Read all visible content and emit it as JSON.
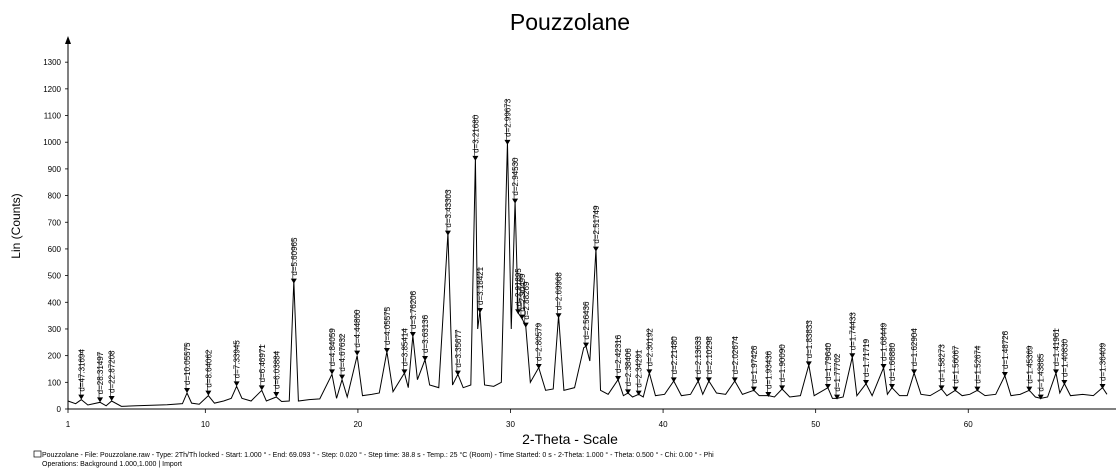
{
  "chart_data": {
    "type": "line",
    "title": "Pouzzolane",
    "x_label": "2-Theta - Scale",
    "y_label": "Lin (Counts)",
    "color": "#000000",
    "xlim": [
      1,
      69.093
    ],
    "ylim": [
      0,
      1400
    ],
    "xticks": [
      1,
      10,
      20,
      30,
      40,
      50,
      60
    ],
    "yticks": [
      0,
      100,
      200,
      300,
      400,
      500,
      600,
      700,
      800,
      900,
      1000,
      1100,
      1200,
      1300
    ],
    "grid": false,
    "x": [
      1.0,
      1.5,
      1.87,
      2.3,
      3.1,
      3.5,
      3.86,
      4.5,
      5.5,
      6.5,
      7.5,
      8.5,
      8.8,
      9.1,
      9.6,
      10.2,
      10.6,
      11.2,
      11.7,
      12.05,
      12.4,
      13.0,
      13.7,
      14.0,
      14.65,
      15.0,
      15.5,
      15.8,
      16.1,
      16.8,
      17.5,
      18.3,
      18.6,
      18.96,
      19.3,
      19.95,
      20.3,
      20.9,
      21.4,
      21.9,
      22.3,
      23.05,
      23.3,
      23.6,
      23.9,
      24.4,
      24.7,
      25.3,
      25.9,
      26.2,
      26.55,
      26.9,
      27.4,
      27.7,
      27.85,
      28.0,
      28.3,
      28.9,
      29.4,
      29.8,
      30.05,
      30.3,
      30.5,
      30.75,
      31.0,
      31.3,
      31.85,
      32.3,
      32.8,
      33.15,
      33.5,
      34.2,
      34.8,
      34.95,
      35.2,
      35.6,
      35.9,
      36.4,
      37.05,
      37.4,
      37.7,
      38.0,
      38.4,
      38.7,
      39.1,
      39.5,
      40.1,
      40.7,
      41.2,
      41.8,
      42.3,
      42.6,
      43.0,
      43.5,
      44.1,
      44.7,
      45.2,
      45.95,
      46.3,
      46.9,
      47.3,
      47.8,
      48.3,
      49.0,
      49.55,
      49.9,
      50.8,
      51.1,
      51.4,
      51.8,
      52.4,
      52.7,
      53.3,
      53.7,
      54.45,
      54.7,
      55.0,
      55.5,
      56.0,
      56.45,
      56.9,
      57.5,
      58.25,
      58.6,
      59.15,
      59.6,
      60.1,
      60.6,
      61.1,
      61.8,
      62.4,
      62.8,
      63.4,
      64.0,
      64.4,
      64.75,
      65.2,
      65.75,
      66.0,
      66.3,
      66.7,
      67.5,
      68.2,
      68.8,
      69.09
    ],
    "values": [
      30,
      20,
      35,
      15,
      25,
      12,
      30,
      10,
      12,
      14,
      16,
      20,
      60,
      22,
      18,
      50,
      22,
      30,
      40,
      85,
      40,
      30,
      70,
      30,
      45,
      28,
      30,
      480,
      30,
      35,
      38,
      130,
      40,
      110,
      45,
      200,
      50,
      55,
      60,
      215,
      65,
      135,
      80,
      275,
      110,
      185,
      90,
      80,
      660,
      90,
      130,
      80,
      90,
      940,
      300,
      370,
      90,
      85,
      100,
      1000,
      300,
      780,
      360,
      340,
      310,
      100,
      155,
      70,
      75,
      350,
      70,
      80,
      230,
      235,
      180,
      600,
      70,
      55,
      110,
      50,
      60,
      45,
      55,
      45,
      135,
      50,
      55,
      105,
      50,
      55,
      105,
      55,
      105,
      60,
      55,
      105,
      55,
      70,
      50,
      50,
      45,
      75,
      45,
      50,
      165,
      50,
      80,
      40,
      40,
      45,
      195,
      50,
      95,
      50,
      155,
      55,
      80,
      50,
      50,
      135,
      55,
      50,
      75,
      50,
      70,
      50,
      55,
      70,
      50,
      55,
      125,
      50,
      55,
      70,
      45,
      40,
      45,
      135,
      60,
      95,
      50,
      55,
      50,
      80,
      55
    ],
    "annotations": [
      {
        "text": "d=47.31694",
        "x": 1.87,
        "y": 35
      },
      {
        "text": "d=28.31497",
        "x": 3.1,
        "y": 25
      },
      {
        "text": "d=22.87208",
        "x": 3.86,
        "y": 30
      },
      {
        "text": "d=10.05575",
        "x": 8.8,
        "y": 60
      },
      {
        "text": "d=8.64062",
        "x": 10.2,
        "y": 50
      },
      {
        "text": "d=7.33945",
        "x": 12.05,
        "y": 85
      },
      {
        "text": "d=6.46971",
        "x": 13.7,
        "y": 70
      },
      {
        "text": "d=6.03884",
        "x": 14.65,
        "y": 45
      },
      {
        "text": "d=5.60965",
        "x": 15.8,
        "y": 470
      },
      {
        "text": "d=4.84059",
        "x": 18.3,
        "y": 130
      },
      {
        "text": "d=4.67632",
        "x": 18.96,
        "y": 110
      },
      {
        "text": "d=4.44800",
        "x": 19.95,
        "y": 200
      },
      {
        "text": "d=4.05575",
        "x": 21.9,
        "y": 210
      },
      {
        "text": "d=3.85414",
        "x": 23.05,
        "y": 130
      },
      {
        "text": "d=3.76206",
        "x": 23.6,
        "y": 270
      },
      {
        "text": "d=3.63136",
        "x": 24.4,
        "y": 180
      },
      {
        "text": "d=3.43303",
        "x": 25.9,
        "y": 650
      },
      {
        "text": "d=3.35677",
        "x": 26.55,
        "y": 125
      },
      {
        "text": "d=3.21680",
        "x": 27.7,
        "y": 930
      },
      {
        "text": "d=3.18421",
        "x": 28.0,
        "y": 360
      },
      {
        "text": "d=2.99673",
        "x": 29.8,
        "y": 990
      },
      {
        "text": "d=2.94530",
        "x": 30.3,
        "y": 770
      },
      {
        "text": "d=2.91895",
        "x": 30.5,
        "y": 355
      },
      {
        "text": "d=2.90499",
        "x": 30.75,
        "y": 335
      },
      {
        "text": "d=2.88269",
        "x": 31.0,
        "y": 305
      },
      {
        "text": "d=2.80579",
        "x": 31.85,
        "y": 150
      },
      {
        "text": "d=2.69968",
        "x": 33.15,
        "y": 340
      },
      {
        "text": "d=2.56436",
        "x": 34.95,
        "y": 230
      },
      {
        "text": "d=2.51749",
        "x": 35.6,
        "y": 590
      },
      {
        "text": "d=2.42316",
        "x": 37.05,
        "y": 105
      },
      {
        "text": "d=2.38406",
        "x": 37.7,
        "y": 55
      },
      {
        "text": "d=2.34291",
        "x": 38.4,
        "y": 50
      },
      {
        "text": "d=2.30192",
        "x": 39.1,
        "y": 130
      },
      {
        "text": "d=2.21480",
        "x": 40.7,
        "y": 100
      },
      {
        "text": "d=2.13633",
        "x": 42.3,
        "y": 100
      },
      {
        "text": "d=2.10298",
        "x": 43.0,
        "y": 100
      },
      {
        "text": "d=2.02674",
        "x": 44.7,
        "y": 100
      },
      {
        "text": "d=1.97426",
        "x": 45.95,
        "y": 65
      },
      {
        "text": "d=1.93436",
        "x": 46.9,
        "y": 45
      },
      {
        "text": "d=1.90090",
        "x": 47.8,
        "y": 70
      },
      {
        "text": "d=1.83833",
        "x": 49.55,
        "y": 160
      },
      {
        "text": "d=1.79640",
        "x": 50.8,
        "y": 75
      },
      {
        "text": "d=1.77702",
        "x": 51.4,
        "y": 35
      },
      {
        "text": "d=1.74433",
        "x": 52.4,
        "y": 190
      },
      {
        "text": "d=1.71719",
        "x": 53.3,
        "y": 90
      },
      {
        "text": "d=1.68449",
        "x": 54.45,
        "y": 150
      },
      {
        "text": "d=1.66880",
        "x": 55.0,
        "y": 75
      },
      {
        "text": "d=1.62904",
        "x": 56.45,
        "y": 130
      },
      {
        "text": "d=1.58273",
        "x": 58.25,
        "y": 70
      },
      {
        "text": "d=1.56067",
        "x": 59.15,
        "y": 65
      },
      {
        "text": "d=1.52674",
        "x": 60.6,
        "y": 65
      },
      {
        "text": "d=1.48726",
        "x": 62.4,
        "y": 120
      },
      {
        "text": "d=1.45369",
        "x": 64.0,
        "y": 65
      },
      {
        "text": "d=1.43885",
        "x": 64.75,
        "y": 35
      },
      {
        "text": "d=1.41961",
        "x": 65.75,
        "y": 130
      },
      {
        "text": "d=1.40830",
        "x": 66.3,
        "y": 90
      },
      {
        "text": "d=1.36409",
        "x": 68.8,
        "y": 75
      }
    ],
    "footer": [
      "Pouzzolane - File: Pouzzolane.raw - Type: 2Th/Th locked - Start: 1.000 ° - End: 69.093 ° - Step: 0.020 ° - Step time: 38.8 s - Temp.: 25 °C (Room) - Time Started: 0 s - 2-Theta: 1.000 ° - Theta: 0.500 ° - Chi: 0.00 ° - Phi",
      "Operations: Background 1.000,1.000 | Import"
    ]
  }
}
